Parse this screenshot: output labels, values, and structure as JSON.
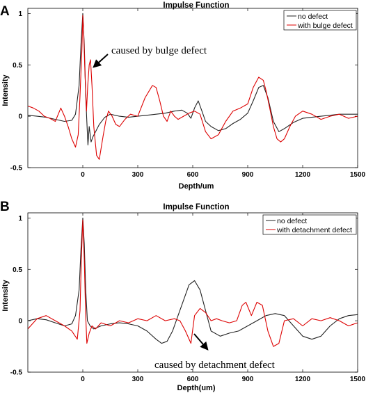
{
  "chart_data": [
    {
      "panel": "A",
      "type": "line",
      "title": "Impulse Function",
      "xlabel": "Depth/um",
      "ylabel": "Intensity",
      "xlim": [
        -300,
        1500
      ],
      "ylim": [
        -0.5,
        1.05
      ],
      "xticks": [
        0,
        300,
        600,
        900,
        1200,
        1500
      ],
      "yticks": [
        -0.5,
        0,
        0.5,
        1
      ],
      "ytick_labels": [
        "-0.5",
        "0",
        "0.5",
        "1"
      ],
      "legend_position": "top-right",
      "annotation": {
        "text": "caused by bulge defect",
        "arrow_tip": [
          50,
          0.5
        ]
      },
      "series": [
        {
          "name": "no defect",
          "color": "#222222",
          "x": [
            -300,
            -250,
            -200,
            -150,
            -100,
            -60,
            -40,
            -20,
            -10,
            0,
            8,
            16,
            22,
            28,
            35,
            45,
            55,
            70,
            90,
            120,
            150,
            200,
            250,
            300,
            350,
            400,
            450,
            500,
            540,
            570,
            590,
            610,
            630,
            650,
            670,
            700,
            740,
            780,
            820,
            860,
            900,
            930,
            960,
            985,
            1010,
            1040,
            1070,
            1100,
            1150,
            1200,
            1250,
            1300,
            1350,
            1400,
            1450,
            1500
          ],
          "y": [
            0.01,
            0.0,
            -0.01,
            -0.03,
            -0.05,
            -0.04,
            0.02,
            0.3,
            0.7,
            1.0,
            0.7,
            0.2,
            -0.05,
            -0.28,
            -0.1,
            -0.25,
            -0.2,
            -0.15,
            -0.08,
            -0.01,
            0.02,
            0.0,
            -0.01,
            0.0,
            0.01,
            0.02,
            0.03,
            0.05,
            0.06,
            0.03,
            -0.02,
            0.08,
            0.15,
            0.05,
            -0.05,
            -0.1,
            -0.14,
            -0.12,
            -0.07,
            -0.03,
            0.03,
            0.15,
            0.28,
            0.3,
            0.18,
            -0.05,
            -0.15,
            -0.12,
            -0.06,
            -0.02,
            -0.01,
            0.0,
            0.01,
            0.02,
            0.02,
            0.02
          ]
        },
        {
          "name": "with bulge defect",
          "color": "#dd0000",
          "x": [
            -300,
            -270,
            -240,
            -210,
            -180,
            -150,
            -120,
            -100,
            -80,
            -60,
            -40,
            -25,
            -15,
            -5,
            0,
            5,
            12,
            20,
            27,
            35,
            42,
            50,
            60,
            75,
            90,
            110,
            125,
            140,
            160,
            180,
            200,
            230,
            260,
            300,
            340,
            380,
            400,
            420,
            440,
            460,
            480,
            500,
            520,
            550,
            580,
            610,
            640,
            670,
            700,
            740,
            780,
            820,
            860,
            900,
            930,
            960,
            985,
            1000,
            1020,
            1040,
            1060,
            1080,
            1100,
            1130,
            1160,
            1200,
            1250,
            1300,
            1350,
            1400,
            1450,
            1500
          ],
          "y": [
            0.1,
            0.08,
            0.05,
            0.0,
            -0.02,
            -0.05,
            0.08,
            0.0,
            -0.1,
            -0.22,
            -0.3,
            -0.18,
            0.2,
            0.65,
            0.98,
            0.8,
            0.4,
            0.05,
            0.3,
            0.5,
            0.55,
            0.3,
            -0.1,
            -0.38,
            -0.42,
            -0.2,
            -0.05,
            0.05,
            0.0,
            -0.08,
            -0.1,
            -0.03,
            0.02,
            0.0,
            0.18,
            0.3,
            0.28,
            0.15,
            0.0,
            -0.05,
            0.05,
            0.0,
            -0.03,
            0.0,
            0.03,
            0.05,
            0.02,
            -0.15,
            -0.22,
            -0.18,
            -0.05,
            0.05,
            0.08,
            0.12,
            0.28,
            0.38,
            0.35,
            0.25,
            0.08,
            -0.1,
            -0.22,
            -0.25,
            -0.22,
            -0.1,
            0.0,
            0.05,
            0.02,
            -0.03,
            0.0,
            0.02,
            -0.02,
            0.0
          ]
        }
      ]
    },
    {
      "panel": "B",
      "type": "line",
      "title": "Impulse Function",
      "xlabel": "Depth(um)",
      "ylabel": "Intensity",
      "xlim": [
        -300,
        1500
      ],
      "ylim": [
        -0.5,
        1.05
      ],
      "xticks": [
        0,
        300,
        600,
        900,
        1200,
        1500
      ],
      "yticks": [
        -0.5,
        0,
        0.5,
        1
      ],
      "ytick_labels": [
        "-0.5",
        "0",
        "0.5",
        "1"
      ],
      "legend_position": "top-right",
      "annotation": {
        "text": "caused by detachment defect",
        "arrow_tip": [
          690,
          -0.28
        ]
      },
      "series": [
        {
          "name": "no defect",
          "color": "#222222",
          "x": [
            -300,
            -250,
            -200,
            -150,
            -100,
            -60,
            -40,
            -20,
            -10,
            0,
            8,
            16,
            25,
            40,
            60,
            100,
            150,
            200,
            250,
            300,
            350,
            400,
            430,
            460,
            490,
            520,
            550,
            580,
            610,
            640,
            670,
            700,
            750,
            800,
            850,
            900,
            950,
            1000,
            1050,
            1100,
            1150,
            1200,
            1250,
            1300,
            1350,
            1400,
            1450,
            1500
          ],
          "y": [
            0.0,
            0.02,
            0.01,
            -0.02,
            -0.05,
            -0.03,
            0.05,
            0.3,
            0.7,
            1.0,
            0.75,
            0.3,
            0.0,
            -0.05,
            -0.08,
            -0.05,
            -0.03,
            -0.02,
            -0.03,
            -0.05,
            -0.1,
            -0.18,
            -0.22,
            -0.2,
            -0.1,
            0.05,
            0.2,
            0.35,
            0.39,
            0.3,
            0.1,
            -0.1,
            -0.15,
            -0.12,
            -0.1,
            -0.05,
            0.0,
            0.05,
            0.07,
            0.05,
            -0.05,
            -0.15,
            -0.18,
            -0.15,
            -0.05,
            0.02,
            0.05,
            0.06
          ]
        },
        {
          "name": "with detachment defect",
          "color": "#dd0000",
          "x": [
            -300,
            -250,
            -200,
            -150,
            -100,
            -60,
            -30,
            -15,
            -8,
            0,
            8,
            15,
            22,
            35,
            50,
            70,
            100,
            150,
            200,
            250,
            300,
            350,
            400,
            450,
            500,
            530,
            560,
            590,
            610,
            640,
            670,
            700,
            730,
            760,
            800,
            840,
            870,
            890,
            920,
            950,
            980,
            1010,
            1040,
            1070,
            1100,
            1150,
            1200,
            1250,
            1300,
            1350,
            1400,
            1450,
            1500
          ],
          "y": [
            -0.08,
            0.02,
            0.05,
            0.0,
            -0.05,
            -0.1,
            -0.18,
            0.1,
            0.6,
            0.98,
            0.6,
            0.1,
            -0.22,
            -0.12,
            -0.05,
            -0.08,
            -0.02,
            -0.05,
            0.0,
            -0.02,
            0.02,
            0.0,
            0.05,
            0.0,
            0.02,
            0.0,
            -0.1,
            -0.22,
            0.05,
            0.12,
            0.08,
            0.0,
            0.02,
            0.0,
            -0.02,
            0.0,
            0.15,
            0.18,
            0.05,
            0.18,
            0.15,
            -0.1,
            -0.25,
            -0.22,
            0.0,
            0.02,
            -0.05,
            0.02,
            0.0,
            0.03,
            0.0,
            -0.05,
            -0.02
          ]
        }
      ]
    }
  ]
}
